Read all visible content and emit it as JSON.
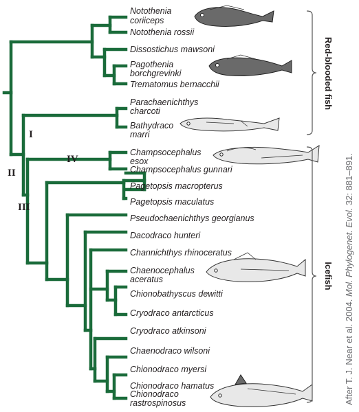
{
  "taxa": [
    {
      "line1": "Notothenia",
      "line2": "coriiceps"
    },
    {
      "line1": "Notothenia rossii",
      "line2": ""
    },
    {
      "line1": "Dissostichus mawsoni",
      "line2": ""
    },
    {
      "line1": "Pagothenia",
      "line2": "borchgrevinki"
    },
    {
      "line1": "Trematomus bernacchii",
      "line2": ""
    },
    {
      "line1": "Parachaenichthys",
      "line2": "charcoti"
    },
    {
      "line1": "Bathydraco",
      "line2": "marri"
    },
    {
      "line1": "Champsocephalus",
      "line2": "esox"
    },
    {
      "line1": "Champsocephalus gunnari",
      "line2": ""
    },
    {
      "line1": "Pagetopsis macropterus",
      "line2": ""
    },
    {
      "line1": "Pagetopsis maculatus",
      "line2": ""
    },
    {
      "line1": "Pseudochaenichthys georgianus",
      "line2": ""
    },
    {
      "line1": "Dacodraco hunteri",
      "line2": ""
    },
    {
      "line1": "Channichthys rhinoceratus",
      "line2": ""
    },
    {
      "line1": "Chaenocephalus",
      "line2": "aceratus"
    },
    {
      "line1": "Chionobathyscus dewitti",
      "line2": ""
    },
    {
      "line1": "Cryodraco antarcticus",
      "line2": ""
    },
    {
      "line1": "Cryodraco atkinsoni",
      "line2": ""
    },
    {
      "line1": "Chaenodraco wilsoni",
      "line2": ""
    },
    {
      "line1": "Chionodraco myersi",
      "line2": ""
    },
    {
      "line1": "Chionodraco hamatus",
      "line2": ""
    },
    {
      "line1": "Chionodraco",
      "line2": "rastrospinosus"
    }
  ],
  "node_labels": {
    "I": "I",
    "II": "II",
    "III": "III",
    "IV": "IV"
  },
  "groups": {
    "red_blooded": "Red-blooded fish",
    "icefish": "Icefish"
  },
  "credit": {
    "prefix": "After T. J. Near et al. 2004. ",
    "journal": "Mol. Phylogenet. Evol.",
    "suffix": " 32: 881–891."
  },
  "colors": {
    "branch": "#1a6b3a",
    "text": "#231f20",
    "credit": "#6d6e71"
  },
  "icons": [
    "fish-illustration-notothenia",
    "fish-illustration-pagothenia",
    "fish-illustration-bathydraco",
    "fish-illustration-champsocephalus",
    "fish-illustration-chaenocephalus",
    "fish-illustration-chionodraco"
  ]
}
